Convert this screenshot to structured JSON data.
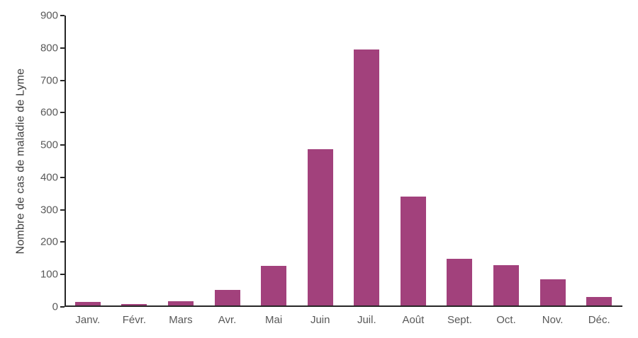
{
  "chart_data": {
    "type": "bar",
    "title": "",
    "ylabel": "Nombre de cas de maladie de Lyme",
    "xlabel": "",
    "categories": [
      "Janv.",
      "Févr.",
      "Mars",
      "Avr.",
      "Mai",
      "Juin",
      "Juil.",
      "Août",
      "Sept.",
      "Oct.",
      "Nov.",
      "Déc."
    ],
    "values": [
      10,
      5,
      13,
      48,
      123,
      482,
      790,
      337,
      145,
      125,
      80,
      26
    ],
    "ylim": [
      0,
      900
    ],
    "ytick_step": 100,
    "ytick_labels": [
      "0",
      "100",
      "200",
      "300",
      "400",
      "500",
      "600",
      "700",
      "800",
      "900"
    ],
    "grid": false,
    "legend": null,
    "colors": {
      "bar": "#A2417C",
      "axis": "#262626",
      "tick_label": "#595959",
      "axis_title": "#404040",
      "background": "#FFFFFF"
    }
  }
}
